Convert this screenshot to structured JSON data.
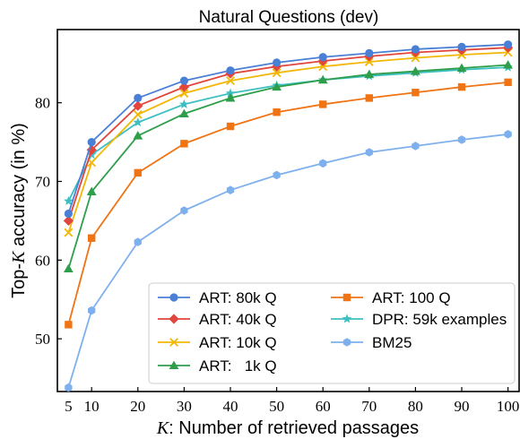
{
  "chart_data": {
    "type": "line",
    "title": "Natural Questions (dev)",
    "xlabel_var": "K",
    "xlabel_rest": ": Number of retrieved passages",
    "ylabel_pre": "Top-",
    "ylabel_var": "K",
    "ylabel_post": " accuracy (in %)",
    "x": [
      5,
      10,
      20,
      30,
      40,
      50,
      60,
      70,
      80,
      90,
      100
    ],
    "xlim": [
      2.6,
      102.4
    ],
    "ylim": [
      43.3,
      89.3
    ],
    "xticks": [
      5,
      10,
      20,
      30,
      40,
      50,
      60,
      70,
      80,
      90,
      100
    ],
    "yticks": [
      50,
      60,
      70,
      80
    ],
    "grid": false,
    "legend": {
      "placement": "bottom-right",
      "columns": 2
    },
    "series": [
      {
        "name": "ART: 80k Q",
        "color": "#4a7fd6",
        "marker": "circle",
        "values": [
          65.9,
          75.0,
          80.6,
          82.8,
          84.1,
          85.1,
          85.8,
          86.3,
          86.8,
          87.1,
          87.4
        ]
      },
      {
        "name": "ART: 40k Q",
        "color": "#e0463d",
        "marker": "diamond",
        "values": [
          65.0,
          74.0,
          79.6,
          82.0,
          83.7,
          84.6,
          85.3,
          85.9,
          86.4,
          86.7,
          87.0
        ]
      },
      {
        "name": "ART: 10k Q",
        "color": "#f2b705",
        "marker": "x",
        "values": [
          63.5,
          72.4,
          78.5,
          81.2,
          82.8,
          83.8,
          84.6,
          85.2,
          85.7,
          86.1,
          86.4
        ]
      },
      {
        "name": "ART:   1k Q",
        "color": "#2e9e4a",
        "marker": "triangle",
        "values": [
          58.9,
          68.7,
          75.8,
          78.6,
          80.6,
          82.0,
          82.9,
          83.6,
          84.0,
          84.4,
          84.8
        ]
      },
      {
        "name": "ART: 100 Q",
        "color": "#f07314",
        "marker": "square",
        "values": [
          51.8,
          62.8,
          71.1,
          74.8,
          77.0,
          78.8,
          79.8,
          80.6,
          81.3,
          82.0,
          82.6
        ]
      },
      {
        "name": "DPR: 59k examples",
        "color": "#3cbfc0",
        "marker": "star",
        "values": [
          67.5,
          73.4,
          77.5,
          79.8,
          81.2,
          82.2,
          82.9,
          83.4,
          83.8,
          84.2,
          84.5
        ]
      },
      {
        "name": "BM25",
        "color": "#7fb0ee",
        "marker": "hexagon",
        "values": [
          43.8,
          53.6,
          62.3,
          66.3,
          68.9,
          70.8,
          72.3,
          73.7,
          74.5,
          75.3,
          76.0
        ]
      }
    ]
  }
}
